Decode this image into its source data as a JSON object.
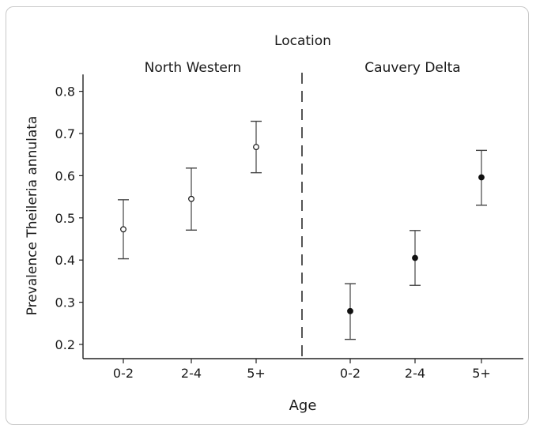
{
  "chart_data": {
    "type": "scatter",
    "title": "Location",
    "xlabel": "Age",
    "ylabel": "Prevalence Theileria annulata",
    "ylim": [
      0.17,
      0.84
    ],
    "yticks": [
      "0.2",
      "0.3",
      "0.4",
      "0.5",
      "0.6",
      "0.7",
      "0.8"
    ],
    "categories": [
      "0-2",
      "2-4",
      "5+"
    ],
    "groups": [
      {
        "name": "North Western",
        "marker": "open-circle",
        "points": [
          {
            "age": "0-2",
            "value": 0.473,
            "lower": 0.403,
            "upper": 0.543
          },
          {
            "age": "2-4",
            "value": 0.545,
            "lower": 0.471,
            "upper": 0.618
          },
          {
            "age": "5+",
            "value": 0.668,
            "lower": 0.607,
            "upper": 0.729
          }
        ]
      },
      {
        "name": "Cauvery Delta",
        "marker": "filled-circle",
        "points": [
          {
            "age": "0-2",
            "value": 0.279,
            "lower": 0.212,
            "upper": 0.344
          },
          {
            "age": "2-4",
            "value": 0.405,
            "lower": 0.34,
            "upper": 0.47
          },
          {
            "age": "5+",
            "value": 0.596,
            "lower": 0.53,
            "upper": 0.66
          }
        ]
      }
    ],
    "grid": false,
    "divider": "dashed vertical line between locations"
  }
}
